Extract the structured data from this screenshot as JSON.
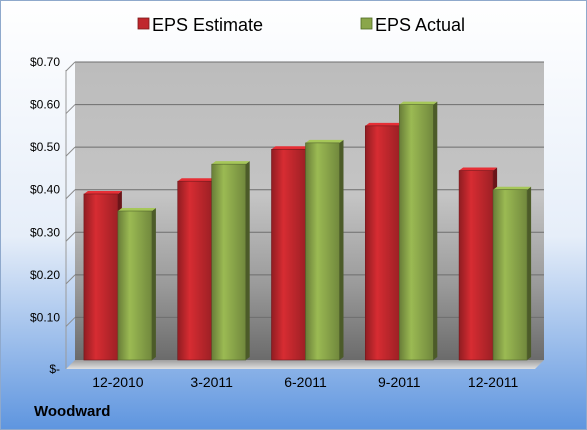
{
  "company": "Woodward",
  "chart_data": {
    "type": "bar",
    "categories": [
      "12-2010",
      "3-2011",
      "6-2011",
      "9-2011",
      "12-2011"
    ],
    "series": [
      {
        "name": "EPS Estimate",
        "color": "#c0272d",
        "values": [
          0.39,
          0.42,
          0.495,
          0.55,
          0.445
        ]
      },
      {
        "name": "EPS Actual",
        "color": "#8aa64a",
        "values": [
          0.35,
          0.46,
          0.51,
          0.6,
          0.4
        ]
      }
    ],
    "ylim": [
      0,
      0.7
    ],
    "yticks": [
      {
        "value": 0,
        "label": "$-"
      },
      {
        "value": 0.1,
        "label": "$0.10"
      },
      {
        "value": 0.2,
        "label": "$0.20"
      },
      {
        "value": 0.3,
        "label": "$0.30"
      },
      {
        "value": 0.4,
        "label": "$0.40"
      },
      {
        "value": 0.5,
        "label": "$0.50"
      },
      {
        "value": 0.6,
        "label": "$0.60"
      },
      {
        "value": 0.7,
        "label": "$0.70"
      }
    ],
    "grid": true,
    "legend": "top-center"
  }
}
